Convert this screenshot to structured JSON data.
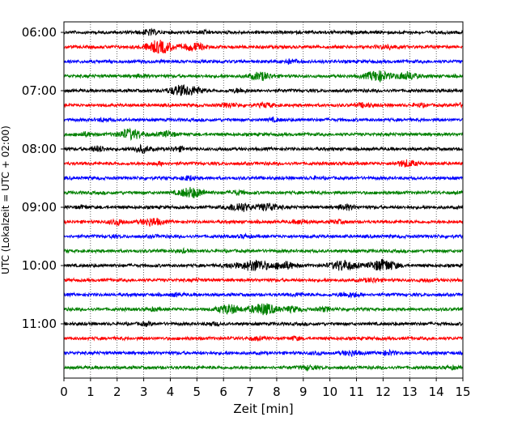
{
  "chart_data": {
    "type": "line",
    "xlabel": "Zeit  [min]",
    "ylabel": "UTC (Lokalzeit = UTC + 02:00)",
    "xlim": [
      0,
      15
    ],
    "x_ticks": [
      "0",
      "1",
      "2",
      "3",
      "4",
      "5",
      "6",
      "7",
      "8",
      "9",
      "10",
      "11",
      "12",
      "13",
      "14",
      "15"
    ],
    "y_ticks": [
      "06:00",
      "07:00",
      "08:00",
      "09:00",
      "10:00",
      "11:00"
    ],
    "grid": "vertical dotted",
    "trace_colors": [
      "#000000",
      "#ff0000",
      "#0000ff",
      "#008000"
    ],
    "rows": [
      {
        "time": "06:00",
        "color": "#000000",
        "events": [
          [
            3.2,
            0.4
          ],
          [
            5.3,
            0.2
          ]
        ]
      },
      {
        "time": "06:15",
        "color": "#ff0000",
        "events": [
          [
            3.6,
            1.0
          ],
          [
            4.9,
            0.6
          ],
          [
            12.2,
            0.3
          ]
        ]
      },
      {
        "time": "06:30",
        "color": "#0000ff",
        "events": [
          [
            8.5,
            0.3
          ]
        ]
      },
      {
        "time": "06:45",
        "color": "#008000",
        "events": [
          [
            2.9,
            0.2
          ],
          [
            7.4,
            0.6
          ],
          [
            11.8,
            0.8
          ],
          [
            12.9,
            0.6
          ]
        ]
      },
      {
        "time": "07:00",
        "color": "#000000",
        "events": [
          [
            4.4,
            0.8
          ],
          [
            5.0,
            0.4
          ],
          [
            6.6,
            0.3
          ]
        ]
      },
      {
        "time": "07:15",
        "color": "#ff0000",
        "events": [
          [
            6.2,
            0.3
          ],
          [
            7.6,
            0.3
          ],
          [
            11.3,
            0.3
          ],
          [
            13.4,
            0.2
          ],
          [
            14.9,
            0.2
          ]
        ]
      },
      {
        "time": "07:30",
        "color": "#0000ff",
        "events": [
          [
            1.5,
            0.2
          ],
          [
            7.9,
            0.2
          ]
        ]
      },
      {
        "time": "07:45",
        "color": "#008000",
        "events": [
          [
            0.8,
            0.3
          ],
          [
            2.5,
            0.8
          ],
          [
            3.9,
            0.4
          ]
        ]
      },
      {
        "time": "08:00",
        "color": "#000000",
        "events": [
          [
            1.3,
            0.4
          ],
          [
            2.9,
            0.5
          ],
          [
            4.3,
            0.3
          ],
          [
            6.0,
            0.1
          ]
        ]
      },
      {
        "time": "08:15",
        "color": "#ff0000",
        "events": [
          [
            3.6,
            0.2
          ],
          [
            12.9,
            0.5
          ]
        ]
      },
      {
        "time": "08:30",
        "color": "#0000ff",
        "events": [
          [
            4.7,
            0.3
          ],
          [
            9.4,
            0.1
          ]
        ]
      },
      {
        "time": "08:45",
        "color": "#008000",
        "events": [
          [
            4.8,
            0.8
          ],
          [
            6.5,
            0.3
          ]
        ]
      },
      {
        "time": "09:00",
        "color": "#000000",
        "events": [
          [
            0.7,
            0.2
          ],
          [
            6.6,
            0.7
          ],
          [
            7.7,
            0.6
          ],
          [
            10.6,
            0.4
          ]
        ]
      },
      {
        "time": "09:15",
        "color": "#ff0000",
        "events": [
          [
            2.0,
            0.4
          ],
          [
            3.3,
            0.6
          ],
          [
            8.9,
            0.3
          ],
          [
            10.3,
            0.2
          ]
        ]
      },
      {
        "time": "09:30",
        "color": "#0000ff",
        "events": [
          [
            1.8,
            0.1
          ],
          [
            3.4,
            0.1
          ],
          [
            6.8,
            0.2
          ]
        ]
      },
      {
        "time": "09:45",
        "color": "#008000",
        "events": [
          [
            4.5,
            0.2
          ]
        ]
      },
      {
        "time": "10:00",
        "color": "#000000",
        "events": [
          [
            6.3,
            0.3
          ],
          [
            7.2,
            0.9
          ],
          [
            8.3,
            0.6
          ],
          [
            10.5,
            0.8
          ],
          [
            12.0,
            0.9
          ]
        ]
      },
      {
        "time": "10:15",
        "color": "#ff0000",
        "events": [
          [
            5.0,
            0.1
          ],
          [
            11.6,
            0.3
          ],
          [
            13.6,
            0.2
          ]
        ]
      },
      {
        "time": "10:30",
        "color": "#0000ff",
        "events": [
          [
            4.2,
            0.2
          ],
          [
            8.8,
            0.2
          ],
          [
            10.6,
            0.3
          ],
          [
            11.0,
            0.2
          ]
        ]
      },
      {
        "time": "10:45",
        "color": "#008000",
        "events": [
          [
            3.4,
            0.2
          ],
          [
            6.2,
            0.7
          ],
          [
            7.5,
            0.9
          ],
          [
            8.6,
            0.4
          ],
          [
            9.8,
            0.3
          ]
        ]
      },
      {
        "time": "11:00",
        "color": "#000000",
        "events": [
          [
            3.1,
            0.2
          ],
          [
            5.6,
            0.2
          ]
        ]
      },
      {
        "time": "11:15",
        "color": "#ff0000",
        "events": [
          [
            7.2,
            0.2
          ],
          [
            8.7,
            0.2
          ]
        ]
      },
      {
        "time": "11:30",
        "color": "#0000ff",
        "events": [
          [
            9.5,
            0.2
          ],
          [
            10.8,
            0.4
          ],
          [
            12.2,
            0.3
          ]
        ]
      },
      {
        "time": "11:45",
        "color": "#008000",
        "events": [
          [
            9.2,
            0.3
          ],
          [
            14.6,
            0.2
          ]
        ]
      }
    ]
  }
}
